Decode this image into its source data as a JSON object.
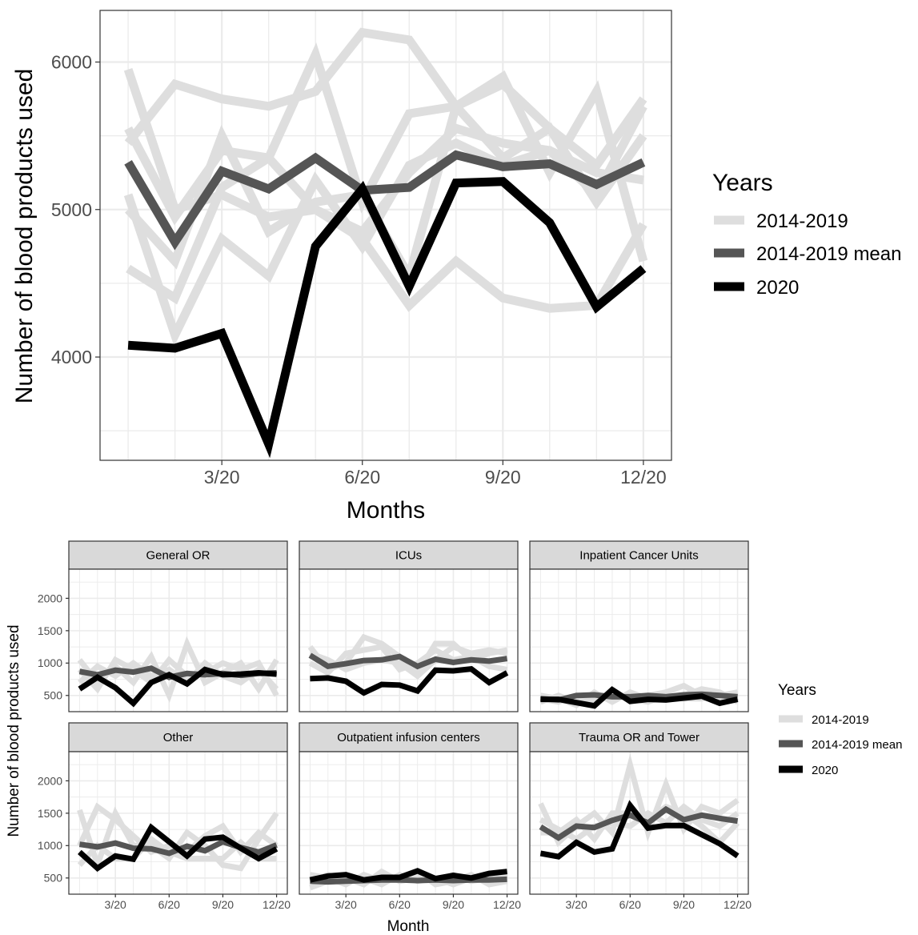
{
  "colors": {
    "hist": "#dedede",
    "mean": "#555555",
    "y2020": "#000000",
    "strip": "#d9d9d9",
    "grid": "#ebebeb",
    "panel_border": "#333333"
  },
  "chart_data": [
    {
      "type": "line",
      "xlabel": "Months",
      "ylabel": "Number of blood products used",
      "x": [
        1,
        2,
        3,
        4,
        5,
        6,
        7,
        8,
        9,
        10,
        11,
        12
      ],
      "xticks": [
        3,
        6,
        9,
        12
      ],
      "xtick_labels": [
        "3/20",
        "6/20",
        "9/20",
        "12/20"
      ],
      "yticks": [
        4000,
        5000,
        6000
      ],
      "xlim": [
        0.4,
        12.6
      ],
      "ylim": [
        3300,
        6350
      ],
      "grid": true,
      "legend": {
        "title": "Years",
        "position": "right",
        "entries": [
          {
            "label": "2014-2019",
            "role": "hist"
          },
          {
            "label": "2014-2019 mean",
            "role": "mean"
          },
          {
            "label": "2020",
            "role": "y2020"
          }
        ]
      },
      "history": [
        [
          5950,
          5000,
          5100,
          4950,
          5000,
          4800,
          4350,
          4650,
          4400,
          4330,
          4350,
          4900
        ],
        [
          5550,
          4950,
          5400,
          5350,
          5000,
          4850,
          5250,
          5550,
          5450,
          5400,
          5100,
          5700
        ],
        [
          5000,
          4650,
          5500,
          4850,
          5050,
          5100,
          4550,
          5700,
          5850,
          5550,
          5300,
          5750
        ],
        [
          5450,
          5850,
          5750,
          5700,
          5800,
          6200,
          6150,
          5700,
          5350,
          5550,
          5050,
          5500
        ],
        [
          4600,
          4400,
          5150,
          5350,
          6050,
          5050,
          5650,
          5700,
          5900,
          5250,
          5800,
          4650
        ],
        [
          5100,
          4150,
          4800,
          4550,
          5200,
          4750,
          5300,
          5450,
          5300,
          5400,
          5250,
          5200
        ]
      ],
      "mean": [
        5320,
        4780,
        5260,
        5140,
        5350,
        5130,
        5150,
        5370,
        5290,
        5310,
        5170,
        5320
      ],
      "series_2020": [
        4080,
        4060,
        4160,
        3410,
        4750,
        5140,
        4480,
        5180,
        5190,
        4910,
        4340,
        4600
      ]
    },
    {
      "type": "line",
      "facet_layout": "3x2",
      "xlabel": "Month",
      "ylabel": "Number of blood products used",
      "x": [
        1,
        2,
        3,
        4,
        5,
        6,
        7,
        8,
        9,
        10,
        11,
        12
      ],
      "xticks": [
        3,
        6,
        9,
        12
      ],
      "xtick_labels": [
        "3/20",
        "6/20",
        "9/20",
        "12/20"
      ],
      "yticks": [
        500,
        1000,
        1500,
        2000
      ],
      "xlim": [
        0.4,
        12.6
      ],
      "ylim": [
        250,
        2450
      ],
      "grid": true,
      "legend": {
        "title": "Years",
        "position": "right",
        "entries": [
          {
            "label": "2014-2019",
            "role": "hist"
          },
          {
            "label": "2014-2019 mean",
            "role": "mean"
          },
          {
            "label": "2020",
            "role": "y2020"
          }
        ]
      },
      "panels": [
        {
          "name": "General OR",
          "history": [
            [
              1050,
              700,
              950,
              700,
              1100,
              500,
              1300,
              700,
              850,
              1000,
              600,
              1050
            ],
            [
              700,
              950,
              800,
              1000,
              800,
              900,
              700,
              1000,
              800,
              700,
              900,
              600
            ],
            [
              900,
              600,
              1050,
              900,
              700,
              1050,
              800,
              850,
              1000,
              900,
              1000,
              500
            ]
          ],
          "mean": [
            870,
            820,
            890,
            860,
            920,
            780,
            840,
            820,
            840,
            810,
            840,
            850
          ],
          "series_2020": [
            600,
            780,
            620,
            380,
            700,
            820,
            680,
            900,
            820,
            830,
            850,
            830
          ]
        },
        {
          "name": "ICUs",
          "history": [
            [
              1250,
              900,
              1000,
              1400,
              1300,
              1100,
              850,
              1300,
              1300,
              1050,
              1150,
              1200
            ],
            [
              1000,
              850,
              1150,
              1200,
              1250,
              900,
              1000,
              1200,
              1050,
              1100,
              950,
              900
            ],
            [
              1150,
              1050,
              900,
              1000,
              1050,
              1000,
              800,
              1050,
              1250,
              1150,
              1200,
              1150
            ]
          ],
          "mean": [
            1120,
            950,
            990,
            1040,
            1050,
            1100,
            950,
            1060,
            1010,
            1050,
            1030,
            1070
          ],
          "series_2020": [
            760,
            770,
            720,
            540,
            670,
            660,
            570,
            890,
            880,
            910,
            700,
            850
          ]
        },
        {
          "name": "Inpatient Cancer Units",
          "history": [
            [
              400,
              500,
              400,
              450,
              500,
              450,
              500,
              550,
              650,
              500,
              400,
              450
            ],
            [
              500,
              450,
              350,
              550,
              400,
              550,
              450,
              450,
              500,
              600,
              550,
              400
            ],
            [
              450,
              400,
              500,
              400,
              500,
              450,
              400,
              500,
              450,
              450,
              500,
              550
            ]
          ],
          "mean": [
            450,
            430,
            500,
            510,
            480,
            480,
            500,
            480,
            510,
            520,
            500,
            480
          ],
          "series_2020": [
            440,
            440,
            390,
            340,
            590,
            410,
            440,
            430,
            460,
            490,
            380,
            440
          ]
        },
        {
          "name": "Other",
          "history": [
            [
              1550,
              700,
              1500,
              1000,
              1000,
              800,
              1200,
              1000,
              700,
              650,
              1100,
              1500
            ],
            [
              1000,
              1600,
              1400,
              1150,
              900,
              1000,
              900,
              1150,
              1300,
              900,
              1200,
              1000
            ],
            [
              700,
              1000,
              800,
              800,
              1100,
              900,
              800,
              800,
              800,
              1050,
              800,
              800
            ]
          ],
          "mean": [
            1020,
            980,
            1040,
            960,
            950,
            880,
            990,
            920,
            1060,
            970,
            900,
            1010
          ],
          "series_2020": [
            900,
            650,
            840,
            790,
            1280,
            1060,
            840,
            1100,
            1130,
            960,
            800,
            950
          ]
        },
        {
          "name": "Outpatient infusion centers",
          "history": [
            [
              350,
              450,
              500,
              400,
              600,
              450,
              500,
              450,
              550,
              450,
              500,
              550
            ],
            [
              550,
              500,
              400,
              550,
              450,
              500,
              600,
              400,
              450,
              550,
              400,
              450
            ],
            [
              450,
              550,
              450,
              500,
              400,
              550,
              450,
              500,
              400,
              500,
              550,
              500
            ]
          ],
          "mean": [
            450,
            440,
            450,
            460,
            470,
            470,
            460,
            470,
            460,
            470,
            470,
            480
          ],
          "series_2020": [
            470,
            530,
            550,
            470,
            510,
            510,
            610,
            490,
            540,
            500,
            570,
            600
          ]
        },
        {
          "name": "Trauma OR and Tower",
          "history": [
            [
              1650,
              1050,
              1300,
              1500,
              1200,
              2250,
              1200,
              1950,
              1250,
              1600,
              1500,
              1700
            ],
            [
              1200,
              1200,
              1400,
              1100,
              1500,
              1500,
              1400,
              1600,
              1500,
              1300,
              1050,
              1350
            ],
            [
              1400,
              1250,
              1100,
              1300,
              1350,
              1300,
              1500,
              1350,
              1600,
              1400,
              1300,
              1500
            ]
          ],
          "mean": [
            1290,
            1120,
            1300,
            1280,
            1390,
            1470,
            1350,
            1560,
            1400,
            1470,
            1420,
            1380
          ],
          "series_2020": [
            880,
            830,
            1050,
            900,
            950,
            1620,
            1270,
            1310,
            1310,
            1170,
            1030,
            840
          ]
        }
      ]
    }
  ]
}
